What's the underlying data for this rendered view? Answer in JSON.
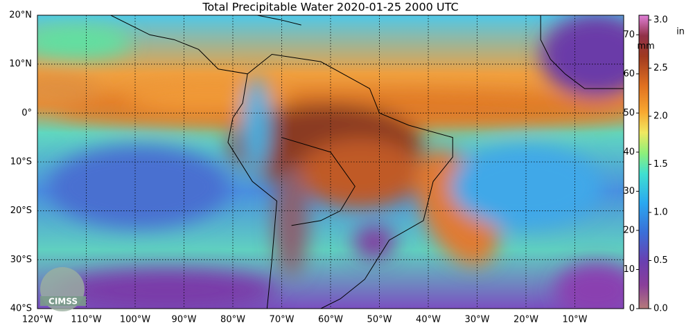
{
  "title": "Total Precipitable Water  2020-01-25 2000 UTC",
  "map": {
    "lonlim": [
      -120,
      0
    ],
    "latlim": [
      -40,
      20
    ],
    "lon_ticks": [
      {
        "value": -120,
        "label": "120°W"
      },
      {
        "value": -110,
        "label": "110°W"
      },
      {
        "value": -100,
        "label": "100°W"
      },
      {
        "value": -90,
        "label": "90°W"
      },
      {
        "value": -80,
        "label": "80°W"
      },
      {
        "value": -70,
        "label": "70°W"
      },
      {
        "value": -60,
        "label": "60°W"
      },
      {
        "value": -50,
        "label": "50°W"
      },
      {
        "value": -40,
        "label": "40°W"
      },
      {
        "value": -30,
        "label": "30°W"
      },
      {
        "value": -20,
        "label": "20°W"
      },
      {
        "value": -10,
        "label": "10°W"
      }
    ],
    "lat_ticks": [
      {
        "value": 20,
        "label": "20°N"
      },
      {
        "value": 10,
        "label": "10°N"
      },
      {
        "value": 0,
        "label": "0°"
      },
      {
        "value": -10,
        "label": "10°S"
      },
      {
        "value": -20,
        "label": "20°S"
      },
      {
        "value": -30,
        "label": "30°S"
      },
      {
        "value": -40,
        "label": "40°S"
      }
    ]
  },
  "colorbar": {
    "mm_label": "mm",
    "mm_lim": [
      0,
      75
    ],
    "mm_ticks": [
      0,
      10,
      20,
      30,
      40,
      50,
      60,
      70
    ],
    "in_label": "in",
    "in_lim": [
      0,
      3.05
    ],
    "in_ticks": [
      {
        "value": 0,
        "label": "0.0"
      },
      {
        "value": 0.5,
        "label": "0.5"
      },
      {
        "value": 1,
        "label": "1.0"
      },
      {
        "value": 1.5,
        "label": "1.5"
      },
      {
        "value": 2,
        "label": "2.0"
      },
      {
        "value": 2.5,
        "label": "2.5"
      },
      {
        "value": 3,
        "label": "3.0"
      }
    ]
  },
  "logo": "CIMSS"
}
